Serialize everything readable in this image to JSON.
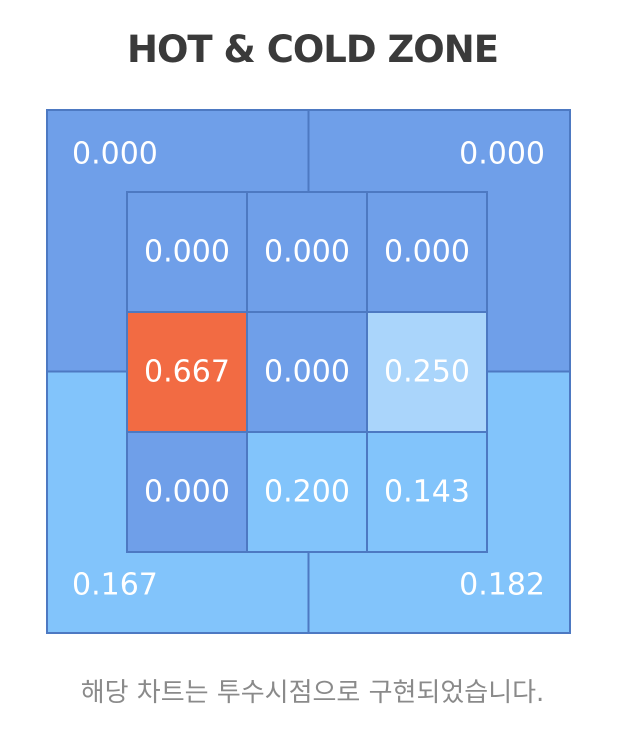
{
  "title": "HOT & COLD ZONE",
  "caption": "해당 차트는 투수시점으로 구현되었습니다.",
  "colors": {
    "hot": "#f26b43",
    "mid_blue": "#6f9fe9",
    "light_blue": "#82c4fb",
    "pale_blue": "#aad5fb",
    "border": "#4d79c2",
    "text": "#ffffff"
  },
  "chart_data": {
    "type": "heatmap",
    "title": "HOT & COLD ZONE",
    "outer_zones": {
      "top_left": 0.0,
      "top_right": 0.0,
      "bottom_left": 0.167,
      "bottom_right": 0.182
    },
    "outer_labels": {
      "top_left": "0.000",
      "top_right": "0.000",
      "bottom_left": "0.167",
      "bottom_right": "0.182"
    },
    "inner_grid": [
      [
        0.0,
        0.0,
        0.0
      ],
      [
        0.667,
        0.0,
        0.25
      ],
      [
        0.0,
        0.2,
        0.143
      ]
    ],
    "inner_labels": [
      [
        "0.000",
        "0.000",
        "0.000"
      ],
      [
        "0.667",
        "0.000",
        "0.250"
      ],
      [
        "0.000",
        "0.200",
        "0.143"
      ]
    ]
  }
}
